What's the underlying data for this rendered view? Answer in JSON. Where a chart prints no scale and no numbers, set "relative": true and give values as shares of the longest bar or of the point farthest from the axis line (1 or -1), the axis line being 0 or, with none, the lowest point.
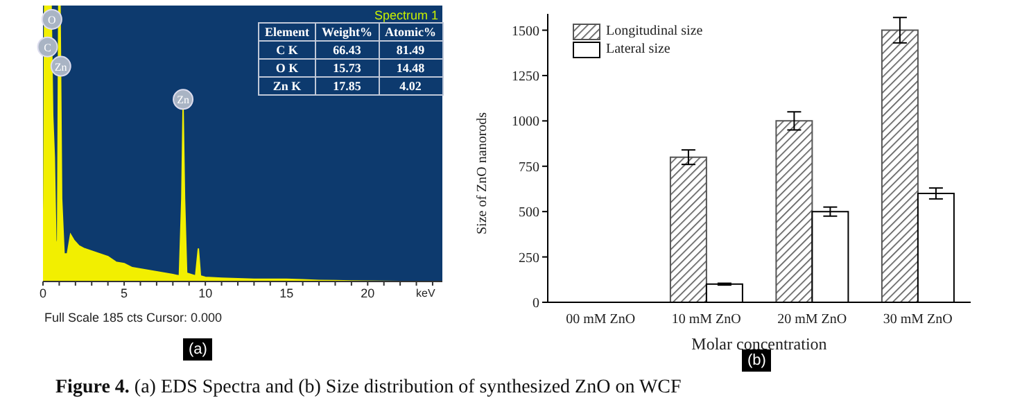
{
  "chart_data": [
    {
      "type": "area",
      "title": "Spectrum 1",
      "xlabel": "keV",
      "relative": true,
      "color": "#f2ef00",
      "x": [
        0,
        0.05,
        0.1,
        0.5,
        0.6,
        0.7,
        0.8,
        0.9,
        0.97,
        1.05,
        1.15,
        1.3,
        1.5,
        1.7,
        1.9,
        2.2,
        2.5,
        3,
        3.5,
        4,
        4.5,
        5,
        5.5,
        6,
        6.5,
        7,
        7.5,
        8,
        8.4,
        8.55,
        8.63,
        8.72,
        8.85,
        9.4,
        9.57,
        9.7,
        10,
        11,
        12,
        13,
        14,
        15,
        16,
        17,
        18,
        19,
        20,
        22
      ],
      "values": [
        0,
        0.3,
        1,
        1,
        0.6,
        0.45,
        0.12,
        0.15,
        1,
        1,
        0.3,
        0.1,
        0.1,
        0.17,
        0.15,
        0.13,
        0.12,
        0.11,
        0.1,
        0.09,
        0.07,
        0.065,
        0.05,
        0.045,
        0.04,
        0.035,
        0.03,
        0.025,
        0.02,
        0.3,
        0.63,
        0.3,
        0.03,
        0.02,
        0.12,
        0.02,
        0.015,
        0.012,
        0.01,
        0.008,
        0.008,
        0.008,
        0.006,
        0.004,
        0.003,
        0.002,
        0.001,
        0
      ],
      "xlim": [
        0,
        24.6
      ],
      "xticks": [
        0,
        {
          "value": 1,
          "label": null
        },
        {
          "value": 2,
          "label": null
        },
        {
          "value": 3,
          "label": null
        },
        {
          "value": 4,
          "label": null
        },
        5,
        {
          "value": 6,
          "label": null
        },
        {
          "value": 7,
          "label": null
        },
        {
          "value": 8,
          "label": null
        },
        {
          "value": 9,
          "label": null
        },
        10,
        {
          "value": 11,
          "label": null
        },
        {
          "value": 12,
          "label": null
        },
        {
          "value": 13,
          "label": null
        },
        {
          "value": 14,
          "label": null
        },
        15,
        {
          "value": 16,
          "label": null
        },
        {
          "value": 17,
          "label": null
        },
        {
          "value": 18,
          "label": null
        },
        {
          "value": 19,
          "label": null
        },
        20,
        {
          "value": 21,
          "label": null
        },
        {
          "value": 22,
          "label": null
        },
        {
          "value": 23,
          "label": null
        },
        {
          "value": 24,
          "label": null
        }
      ],
      "annotations": [
        {
          "text": "C",
          "x": 0.28,
          "y": 0.85
        },
        {
          "text": "O",
          "x": 0.55,
          "y": 0.95
        },
        {
          "text": "Zn",
          "x": 1.1,
          "y": 0.78
        },
        {
          "text": "Zn",
          "x": 8.63,
          "y": 0.66
        },
        "Full Scale 185 cts Cursor: 0.000",
        "(a)"
      ]
    },
    {
      "type": "other",
      "xlabel": "Element",
      "categories": [
        "C K",
        "O K",
        "Zn K"
      ],
      "data_labels": true,
      "series": [
        {
          "name": "Weight%",
          "values": [
            66.43,
            15.73,
            17.85
          ]
        },
        {
          "name": "Atomic%",
          "values": [
            81.49,
            14.48,
            4.02
          ]
        }
      ]
    },
    {
      "type": "bar",
      "xlabel": "Molar concentration",
      "ylabel": "Size of ZnO nanorods",
      "legend": "top left",
      "grid": false,
      "categories": [
        "00 mM ZnO",
        "10 mM ZnO",
        "20 mM ZnO",
        "30 mM ZnO"
      ],
      "series": [
        {
          "name": "Longitudinal size",
          "color": "#555555",
          "values": [
            0,
            800,
            1000,
            1500
          ],
          "errors": [
            null,
            40,
            50,
            70
          ]
        },
        {
          "name": "Lateral size",
          "color": "#ffffff",
          "values": [
            0,
            100,
            500,
            600
          ],
          "errors": [
            null,
            5,
            25,
            30
          ]
        }
      ],
      "ylim": [
        0,
        1590
      ],
      "yticks": [
        0,
        250,
        500,
        750,
        1000,
        1250,
        1500
      ],
      "annotations": [
        "(b)",
        "Figure 4. (a) EDS Spectra and (b) Size distribution of synthesized ZnO on WCF"
      ]
    }
  ]
}
